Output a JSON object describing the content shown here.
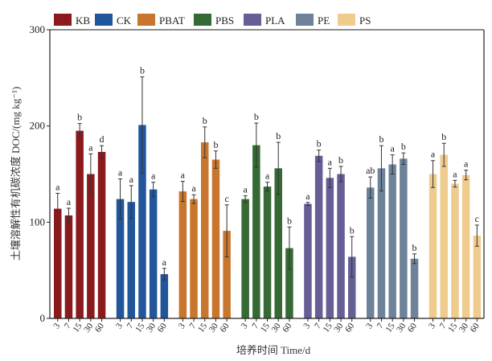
{
  "chart_data": {
    "type": "bar",
    "title": "",
    "xlabel": "培养时间 Time/d",
    "ylabel": "土壤溶解性有机碳浓度 DOC/(mg kg⁻¹)",
    "ylim": [
      0,
      300
    ],
    "yticks": [
      0,
      100,
      200,
      300
    ],
    "grid": false,
    "legend_position": "top",
    "categories": [
      "3",
      "7",
      "15",
      "30",
      "60"
    ],
    "series": [
      {
        "name": "KB",
        "color": "#8B1A1E",
        "values": [
          114,
          107,
          195,
          150,
          173
        ],
        "errors": [
          16,
          7.5,
          7.5,
          21,
          6.5
        ],
        "labels": [
          "a",
          "a",
          "b",
          "a",
          "d"
        ]
      },
      {
        "name": "CK",
        "color": "#22569A",
        "values": [
          124,
          121,
          201,
          134,
          46
        ],
        "errors": [
          21,
          17,
          50,
          7.5,
          6
        ],
        "labels": [
          "a",
          "a",
          "b",
          "a",
          "a"
        ]
      },
      {
        "name": "PBAT",
        "color": "#C8762D",
        "values": [
          132,
          124,
          183,
          165,
          91
        ],
        "errors": [
          10.5,
          4.5,
          16,
          9,
          27
        ],
        "labels": [
          "a",
          "a",
          "b",
          "b",
          "c"
        ]
      },
      {
        "name": "PBS",
        "color": "#356A34",
        "values": [
          124,
          180,
          137,
          156,
          73
        ],
        "errors": [
          3.5,
          23,
          4.5,
          27,
          22
        ],
        "labels": [
          "a",
          "b",
          "a",
          "b",
          "b"
        ]
      },
      {
        "name": "PLA",
        "color": "#665F96",
        "values": [
          119,
          169,
          146,
          150,
          64
        ],
        "errors": [
          1.5,
          6,
          10,
          8,
          21
        ],
        "labels": [
          "a",
          "b",
          "a",
          "b",
          "b"
        ]
      },
      {
        "name": "PE",
        "color": "#6E8299",
        "values": [
          136,
          156,
          160,
          166,
          62
        ],
        "errors": [
          11,
          23.5,
          10,
          6,
          5
        ],
        "labels": [
          "ab",
          "b",
          "a",
          "b",
          "b"
        ]
      },
      {
        "name": "PS",
        "color": "#EFCB8E",
        "values": [
          150,
          170,
          140,
          149,
          86
        ],
        "errors": [
          14,
          12,
          3.5,
          5,
          11
        ],
        "labels": [
          "a",
          "b",
          "a",
          "a",
          "c"
        ]
      }
    ]
  }
}
